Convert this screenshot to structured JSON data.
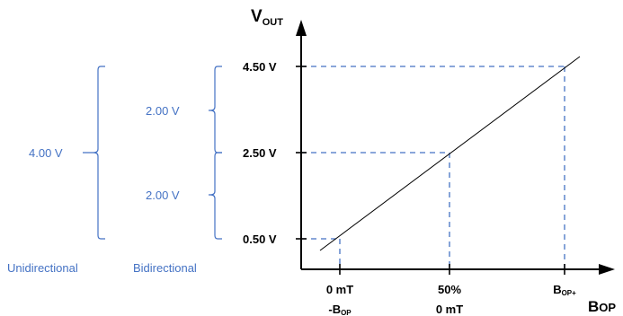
{
  "y_axis": {
    "label": "V",
    "label_sub": "OUT",
    "ticks": [
      "4.50 V",
      "2.50 V",
      "0.50 V"
    ]
  },
  "x_axis": {
    "label": "B",
    "label_sub": "OP",
    "ticks": [
      {
        "line1": "0 mT",
        "line2": "-B",
        "line2_sub": "OP"
      },
      {
        "line1": "50%",
        "line2": "0 mT"
      },
      {
        "line1": "B",
        "line1_sub": "OP+"
      }
    ]
  },
  "unidirectional": {
    "span": "4.00 V",
    "caption": "Unidirectional"
  },
  "bidirectional": {
    "upper_span": "2.00 V",
    "lower_span": "2.00 V",
    "caption": "Bidirectional"
  },
  "colors": {
    "accent": "#4472C4",
    "line": "#000000"
  }
}
